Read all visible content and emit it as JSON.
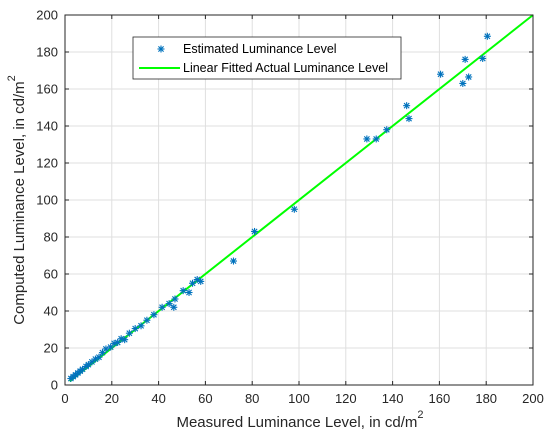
{
  "chart_data": {
    "type": "scatter",
    "title": "",
    "xlabel": "Measured Luminance Level, in cd/m",
    "xlabel_sup": "2",
    "ylabel": "Computed Luminance Level, in cd/m",
    "ylabel_sup": "2",
    "xlim": [
      0,
      200
    ],
    "ylim": [
      0,
      200
    ],
    "xticks": [
      0,
      20,
      40,
      60,
      80,
      100,
      120,
      140,
      160,
      180,
      200
    ],
    "yticks": [
      0,
      20,
      40,
      60,
      80,
      100,
      120,
      140,
      160,
      180,
      200
    ],
    "grid": true,
    "legend_position": "top-left",
    "series": [
      {
        "name": "Estimated Luminance Level",
        "kind": "scatter",
        "marker": "asterisk",
        "color": "#0072bd",
        "points": [
          [
            2.5,
            3.5
          ],
          [
            3.5,
            4.5
          ],
          [
            4.5,
            5.5
          ],
          [
            5.5,
            6.5
          ],
          [
            6.5,
            7.5
          ],
          [
            7.5,
            8.5
          ],
          [
            9,
            10
          ],
          [
            10,
            11
          ],
          [
            11.5,
            12.5
          ],
          [
            13,
            14
          ],
          [
            14.5,
            15
          ],
          [
            16,
            17.5
          ],
          [
            17.5,
            19.5
          ],
          [
            19.5,
            20.5
          ],
          [
            21,
            22.5
          ],
          [
            22.5,
            23
          ],
          [
            24,
            25
          ],
          [
            25.5,
            24.5
          ],
          [
            27.5,
            28
          ],
          [
            30,
            30.5
          ],
          [
            32.5,
            32
          ],
          [
            35,
            35
          ],
          [
            38,
            38
          ],
          [
            41.5,
            42
          ],
          [
            44.5,
            44
          ],
          [
            46.5,
            42
          ],
          [
            47,
            46.5
          ],
          [
            50.5,
            51
          ],
          [
            53,
            50
          ],
          [
            54.5,
            55
          ],
          [
            56.5,
            57
          ],
          [
            58,
            56
          ],
          [
            72,
            67
          ],
          [
            81,
            83
          ],
          [
            98,
            95
          ],
          [
            129,
            133
          ],
          [
            133,
            133
          ],
          [
            137.5,
            138
          ],
          [
            146,
            151
          ],
          [
            147,
            144
          ],
          [
            160.5,
            168
          ],
          [
            170,
            163
          ],
          [
            171,
            176
          ],
          [
            172.5,
            166.5
          ],
          [
            178.5,
            176.5
          ],
          [
            180.5,
            188.5
          ]
        ]
      },
      {
        "name": "Linear Fitted Actual Luminance Level",
        "kind": "line",
        "color": "#00ff00",
        "points": [
          [
            2,
            2
          ],
          [
            200,
            200
          ]
        ]
      }
    ]
  }
}
